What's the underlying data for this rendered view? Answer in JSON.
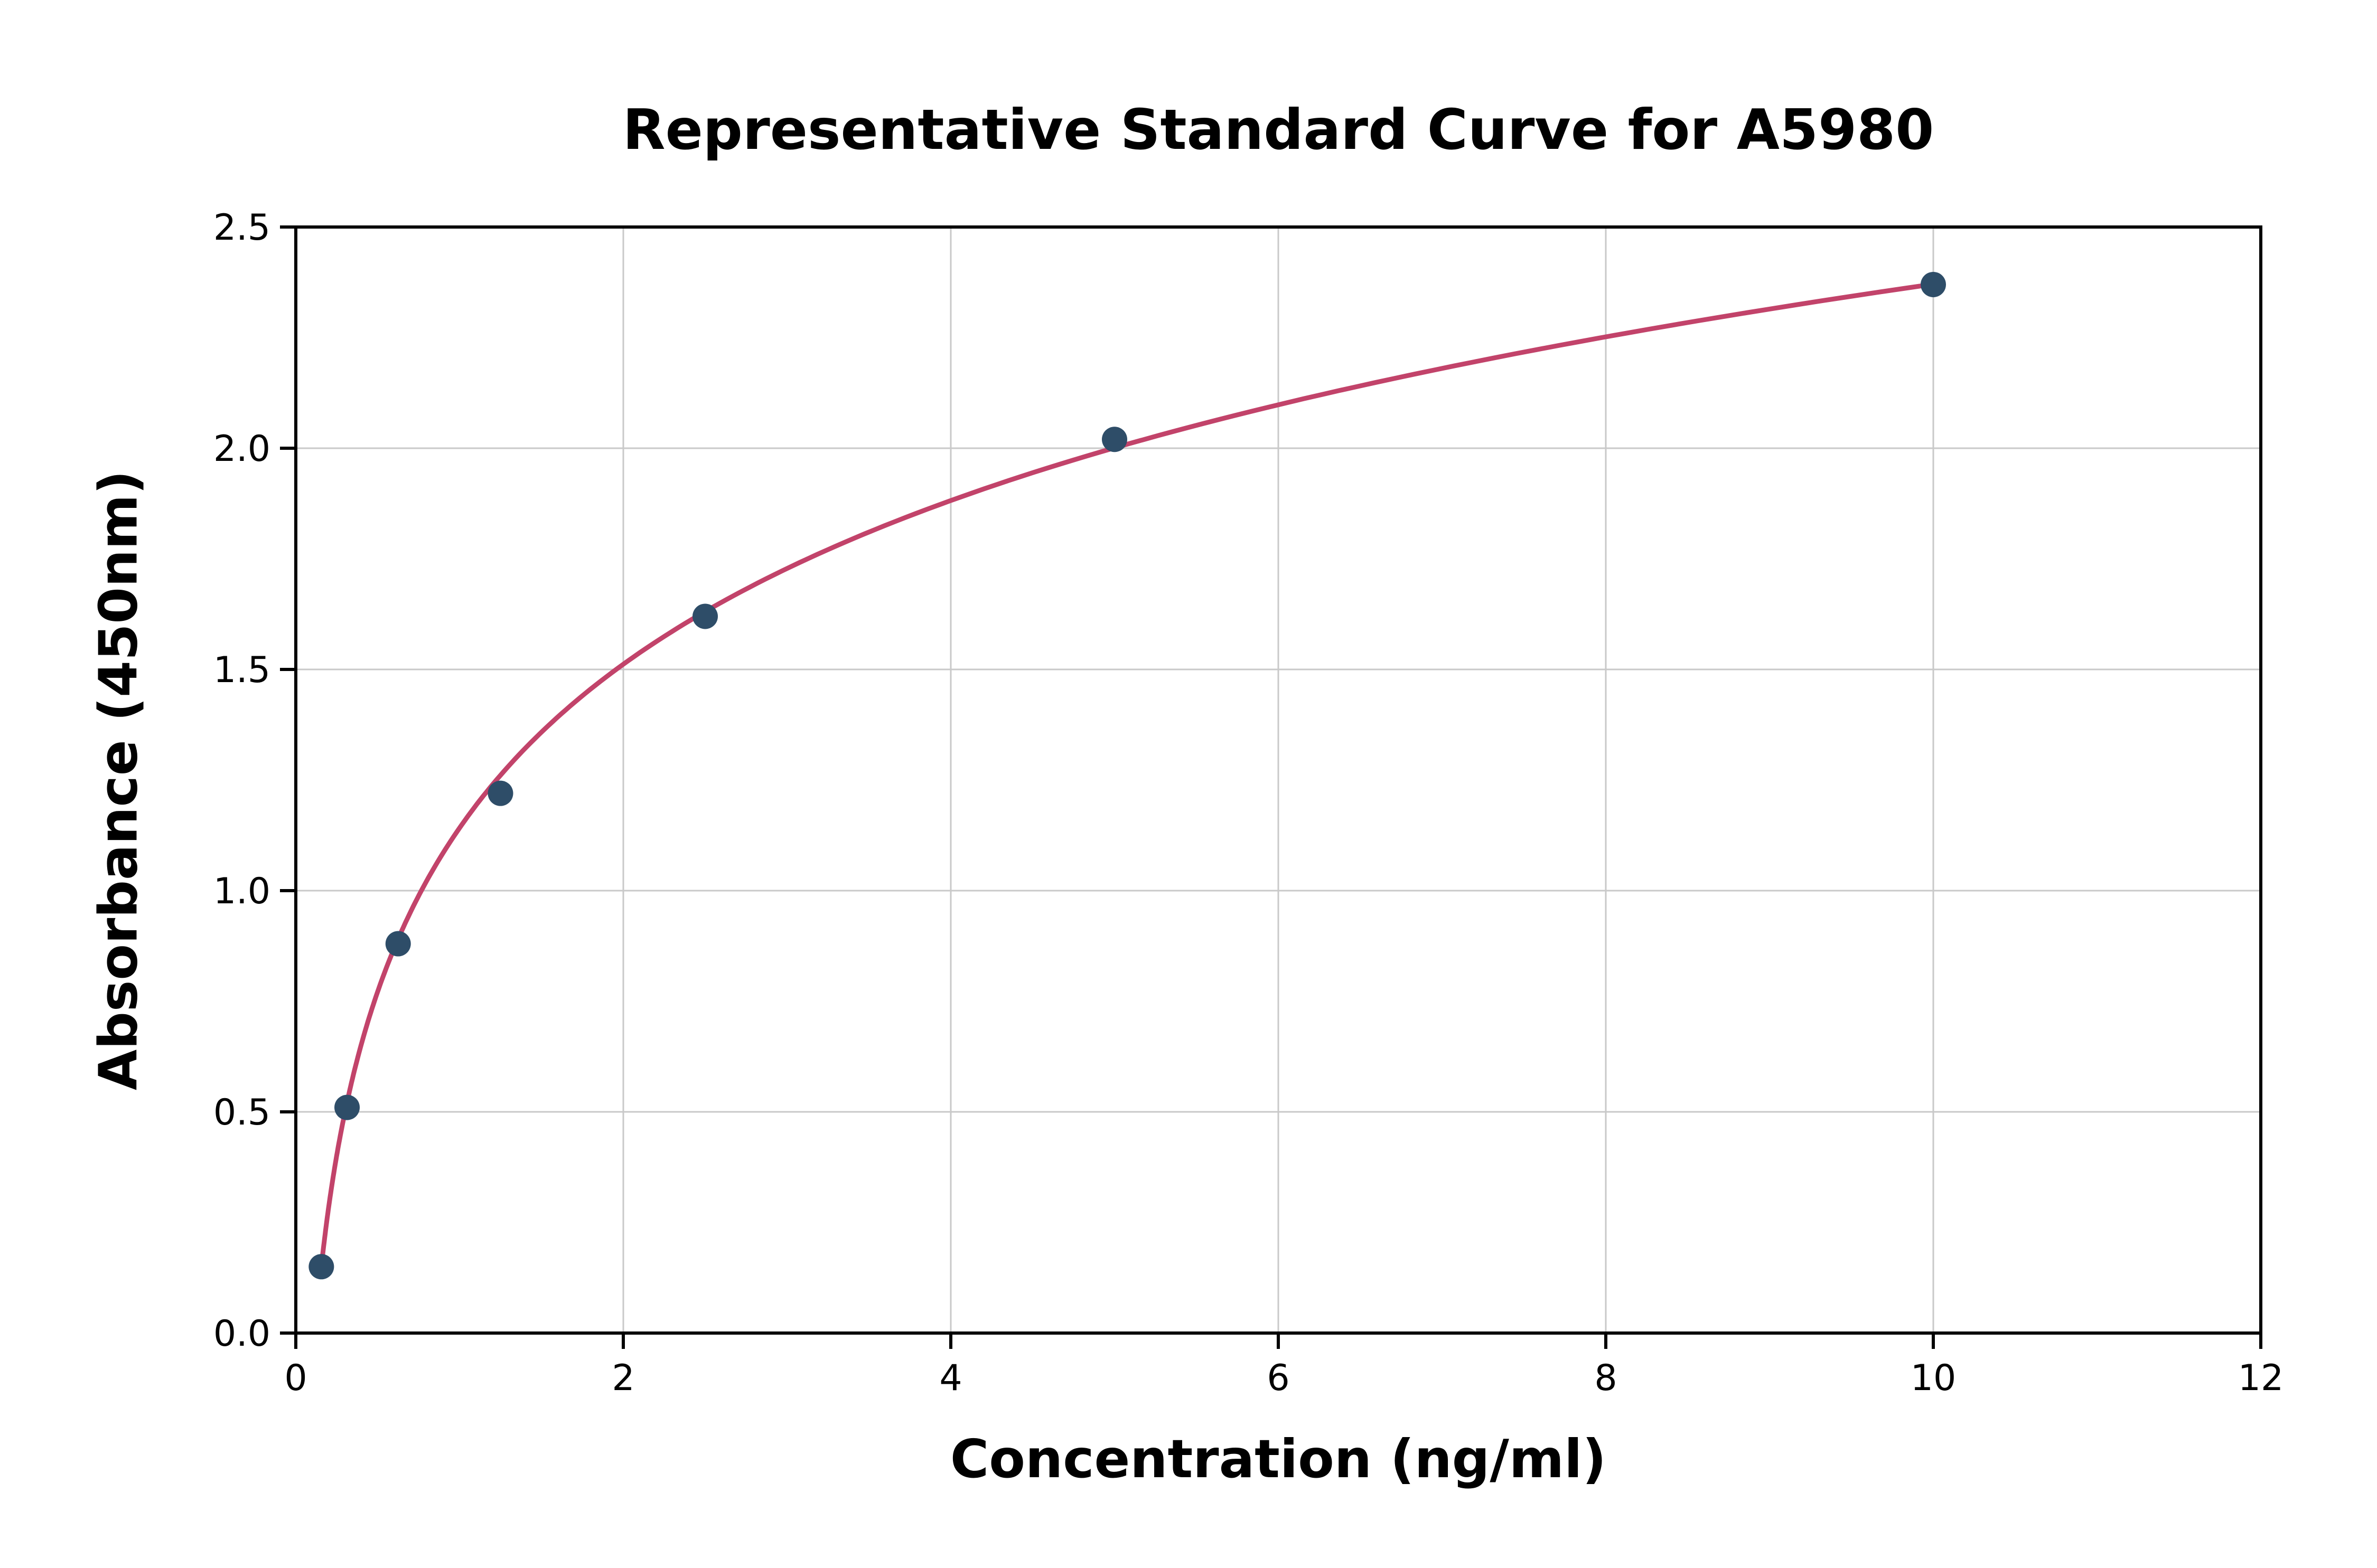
{
  "chart_data": {
    "type": "scatter",
    "title": "Representative Standard Curve for A5980",
    "xlabel": "Concentration (ng/ml)",
    "ylabel": "Absorbance (450nm)",
    "xlim": [
      0,
      12
    ],
    "ylim": [
      0,
      2.5
    ],
    "grid": true,
    "legend": "none",
    "xticks": {
      "values": [
        0,
        2,
        4,
        6,
        8,
        10,
        12
      ],
      "labels": [
        "0",
        "2",
        "4",
        "6",
        "8",
        "10",
        "12"
      ]
    },
    "yticks": {
      "values": [
        0.0,
        0.5,
        1.0,
        1.5,
        2.0,
        2.5
      ],
      "labels": [
        "0.0",
        "0.5",
        "1.0",
        "1.5",
        "2.0",
        "2.5"
      ]
    },
    "points": {
      "x": [
        0.156,
        0.313,
        0.625,
        1.25,
        2.5,
        5.0,
        10.0
      ],
      "y": [
        0.15,
        0.51,
        0.88,
        1.22,
        1.62,
        2.02,
        2.37
      ]
    },
    "fit_curve": {
      "type": "logarithmic",
      "formula": "y = y0 + k * log2(x / x1)",
      "y0": 0.15,
      "k": 0.37,
      "x1": 0.156,
      "x_start": 0.156,
      "x_end": 10.0
    },
    "colors": {
      "points": "#2e4d68",
      "curve": "#c2436a",
      "grid": "#c9c9c9",
      "axis": "#000000",
      "text": "#000000",
      "background": "#ffffff"
    }
  }
}
